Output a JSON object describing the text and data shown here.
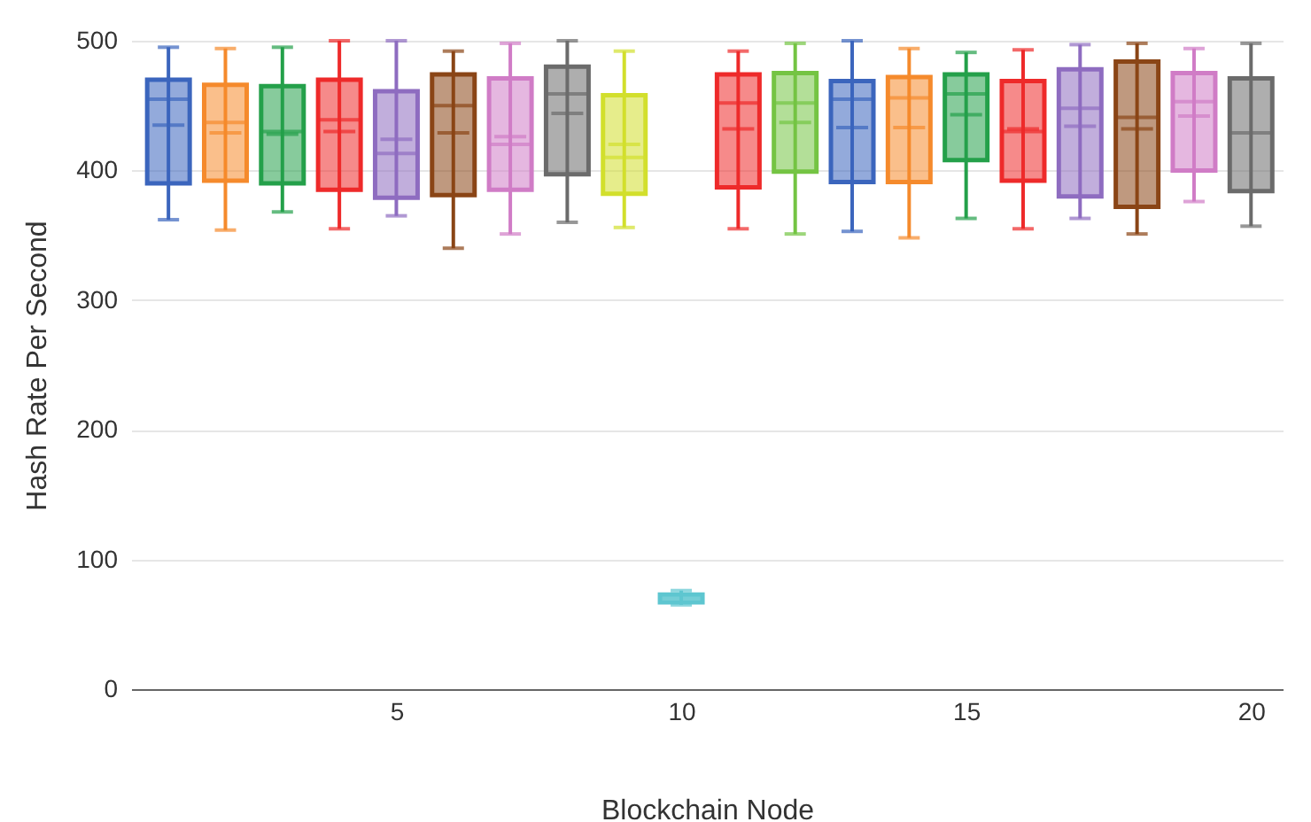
{
  "chart_data": {
    "type": "box",
    "xlabel": "Blockchain Node",
    "ylabel": "Hash Rate Per Second",
    "x": [
      1,
      2,
      3,
      4,
      5,
      6,
      7,
      8,
      9,
      10,
      11,
      12,
      13,
      14,
      15,
      16,
      17,
      18,
      19,
      20
    ],
    "boxes": [
      {
        "low": 362,
        "q1": 390,
        "median": 455,
        "q3": 470,
        "high": 495,
        "mean": 435
      },
      {
        "low": 354,
        "q1": 392,
        "median": 437,
        "q3": 466,
        "high": 494,
        "mean": 429
      },
      {
        "low": 368,
        "q1": 390,
        "median": 430,
        "q3": 465,
        "high": 495,
        "mean": 428
      },
      {
        "low": 355,
        "q1": 385,
        "median": 439,
        "q3": 470,
        "high": 500,
        "mean": 430
      },
      {
        "low": 365,
        "q1": 379,
        "median": 413,
        "q3": 461,
        "high": 500,
        "mean": 424
      },
      {
        "low": 340,
        "q1": 381,
        "median": 450,
        "q3": 474,
        "high": 492,
        "mean": 429
      },
      {
        "low": 351,
        "q1": 385,
        "median": 420,
        "q3": 471,
        "high": 498,
        "mean": 426
      },
      {
        "low": 360,
        "q1": 397,
        "median": 459,
        "q3": 480,
        "high": 500,
        "mean": 444
      },
      {
        "low": 356,
        "q1": 382,
        "median": 410,
        "q3": 458,
        "high": 492,
        "mean": 420
      },
      {
        "low": 65,
        "q1": 67,
        "median": 70,
        "q3": 73,
        "high": 76
      },
      {
        "low": 355,
        "q1": 387,
        "median": 452,
        "q3": 474,
        "high": 492,
        "mean": 432
      },
      {
        "low": 351,
        "q1": 399,
        "median": 452,
        "q3": 475,
        "high": 498,
        "mean": 437
      },
      {
        "low": 353,
        "q1": 391,
        "median": 455,
        "q3": 469,
        "high": 500,
        "mean": 433
      },
      {
        "low": 348,
        "q1": 391,
        "median": 456,
        "q3": 472,
        "high": 494,
        "mean": 433
      },
      {
        "low": 363,
        "q1": 408,
        "median": 459,
        "q3": 474,
        "high": 491,
        "mean": 443
      },
      {
        "low": 355,
        "q1": 392,
        "median": 430,
        "q3": 469,
        "high": 493,
        "mean": 432
      },
      {
        "low": 363,
        "q1": 380,
        "median": 448,
        "q3": 478,
        "high": 497,
        "mean": 434
      },
      {
        "low": 351,
        "q1": 372,
        "median": 441,
        "q3": 484,
        "high": 498,
        "mean": 432
      },
      {
        "low": 376,
        "q1": 400,
        "median": 453,
        "q3": 475,
        "high": 494,
        "mean": 442
      },
      {
        "low": 357,
        "q1": 384,
        "median": 429,
        "q3": 471,
        "high": 498
      }
    ],
    "colors": [
      "#3b65bd",
      "#f58a2c",
      "#24a04a",
      "#ee2a2a",
      "#8e6cc0",
      "#8a4516",
      "#d07cc6",
      "#6b6b6b",
      "#d2df2c",
      "#5ec6d0",
      "#ee2a2a",
      "#74c443",
      "#3b65bd",
      "#f58a2c",
      "#24a04a",
      "#ee2a2a",
      "#8e6cc0",
      "#8a4516",
      "#d07cc6",
      "#6b6b6b"
    ],
    "xlim": [
      0.5,
      20.4
    ],
    "xticks": [
      5,
      10,
      15,
      20
    ],
    "ylim": [
      0,
      500
    ],
    "yticks": [
      0,
      100,
      200,
      300,
      400,
      500
    ],
    "grid": "y"
  }
}
